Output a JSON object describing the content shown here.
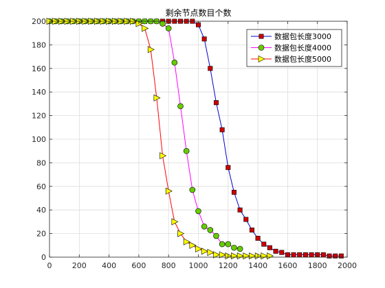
{
  "chart_data": {
    "type": "line",
    "title": "剩余节点数目个数",
    "xlabel": "",
    "ylabel": "",
    "xlim": [
      0,
      2000
    ],
    "ylim": [
      0,
      200
    ],
    "xticks": [
      "0",
      "200",
      "400",
      "600",
      "800",
      "1000",
      "1200",
      "1400",
      "1600",
      "1800",
      "2000"
    ],
    "yticks": [
      "0",
      "20",
      "40",
      "60",
      "80",
      "100",
      "120",
      "140",
      "160",
      "180",
      "200"
    ],
    "grid": true,
    "legend_position": "top-right",
    "series": [
      {
        "name": "数据包长度3000",
        "color": "#0000cc",
        "marker": "square",
        "marker_fill": "#cc0000",
        "x": [
          0,
          40,
          80,
          120,
          160,
          200,
          240,
          280,
          320,
          360,
          400,
          440,
          480,
          520,
          560,
          600,
          640,
          680,
          720,
          760,
          800,
          840,
          880,
          920,
          960,
          1000,
          1040,
          1080,
          1120,
          1160,
          1200,
          1240,
          1280,
          1320,
          1360,
          1400,
          1440,
          1480,
          1520,
          1560,
          1600,
          1640,
          1680,
          1720,
          1760,
          1800,
          1840,
          1880,
          1920,
          1960
        ],
        "y": [
          200,
          200,
          200,
          200,
          200,
          200,
          200,
          200,
          200,
          200,
          200,
          200,
          200,
          200,
          200,
          200,
          200,
          200,
          200,
          200,
          200,
          200,
          200,
          200,
          200,
          197,
          185,
          160,
          131,
          108,
          76,
          55,
          40,
          32,
          23,
          16,
          11,
          8,
          5,
          4,
          2,
          2,
          2,
          2,
          2,
          2,
          2,
          1,
          1,
          1
        ]
      },
      {
        "name": "数据包长度4000",
        "color": "#ff00ff",
        "marker": "circle",
        "marker_fill": "#66cc00",
        "x": [
          0,
          40,
          80,
          120,
          160,
          200,
          240,
          280,
          320,
          360,
          400,
          440,
          480,
          520,
          560,
          600,
          640,
          680,
          720,
          760,
          800,
          840,
          880,
          920,
          960,
          1000,
          1040,
          1080,
          1120,
          1160,
          1200,
          1240,
          1280
        ],
        "y": [
          200,
          200,
          200,
          200,
          200,
          200,
          200,
          200,
          200,
          200,
          200,
          200,
          200,
          200,
          200,
          200,
          200,
          200,
          200,
          198,
          194,
          165,
          128,
          90,
          57,
          39,
          26,
          23,
          18,
          11,
          11,
          8,
          7
        ]
      },
      {
        "name": "数据包长度5000",
        "color": "#ff0000",
        "marker": "triangle-right",
        "marker_fill": "#ffff00",
        "x": [
          0,
          40,
          80,
          120,
          160,
          200,
          240,
          280,
          320,
          360,
          400,
          440,
          480,
          520,
          560,
          600,
          640,
          680,
          720,
          760,
          800,
          840,
          880,
          920,
          960,
          1000,
          1040,
          1080,
          1120,
          1160,
          1200,
          1240,
          1280,
          1320,
          1360,
          1400,
          1440,
          1480
        ],
        "y": [
          200,
          200,
          200,
          200,
          200,
          200,
          200,
          200,
          200,
          200,
          200,
          200,
          200,
          200,
          200,
          198,
          194,
          176,
          135,
          86,
          56,
          30,
          20,
          13,
          10,
          7,
          5,
          4,
          2,
          2,
          1,
          1,
          1,
          1,
          1,
          1,
          1,
          1
        ]
      }
    ]
  }
}
